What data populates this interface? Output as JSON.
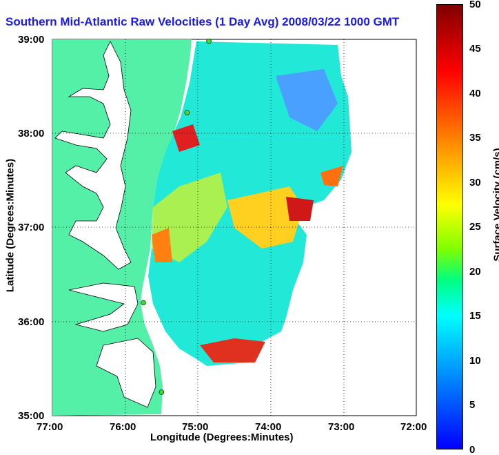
{
  "title": "Southern Mid-Atlantic Raw Velocities (1 Day Avg) 2008/03/22 1000 GMT",
  "xaxis": {
    "label": "Longitude (Degrees:Minutes)",
    "ticks": [
      "77:00",
      "76:00",
      "75:00",
      "74:00",
      "73:00",
      "72:00"
    ],
    "range": [
      -77,
      -72
    ]
  },
  "yaxis": {
    "label": "Latitude (Degrees:Minutes)",
    "ticks": [
      "39:00",
      "38:00",
      "37:00",
      "36:00",
      "35:00"
    ],
    "range": [
      35,
      39
    ]
  },
  "colorbar": {
    "label": "Surface Velocity (cm/s)",
    "ticks": [
      "50",
      "45",
      "40",
      "35",
      "30",
      "25",
      "20",
      "15",
      "10",
      "5",
      "0"
    ],
    "range": [
      0,
      50
    ]
  },
  "colors": {
    "land": "#55f0a8",
    "water": "#ffffff",
    "title": "#1a1aee",
    "station": "#33dd33"
  },
  "stations": [
    {
      "lon": -74.85,
      "lat": 38.98
    },
    {
      "lon": -75.15,
      "lat": 38.22
    },
    {
      "lon": -75.75,
      "lat": 36.2
    },
    {
      "lon": -75.5,
      "lat": 35.25
    }
  ]
}
